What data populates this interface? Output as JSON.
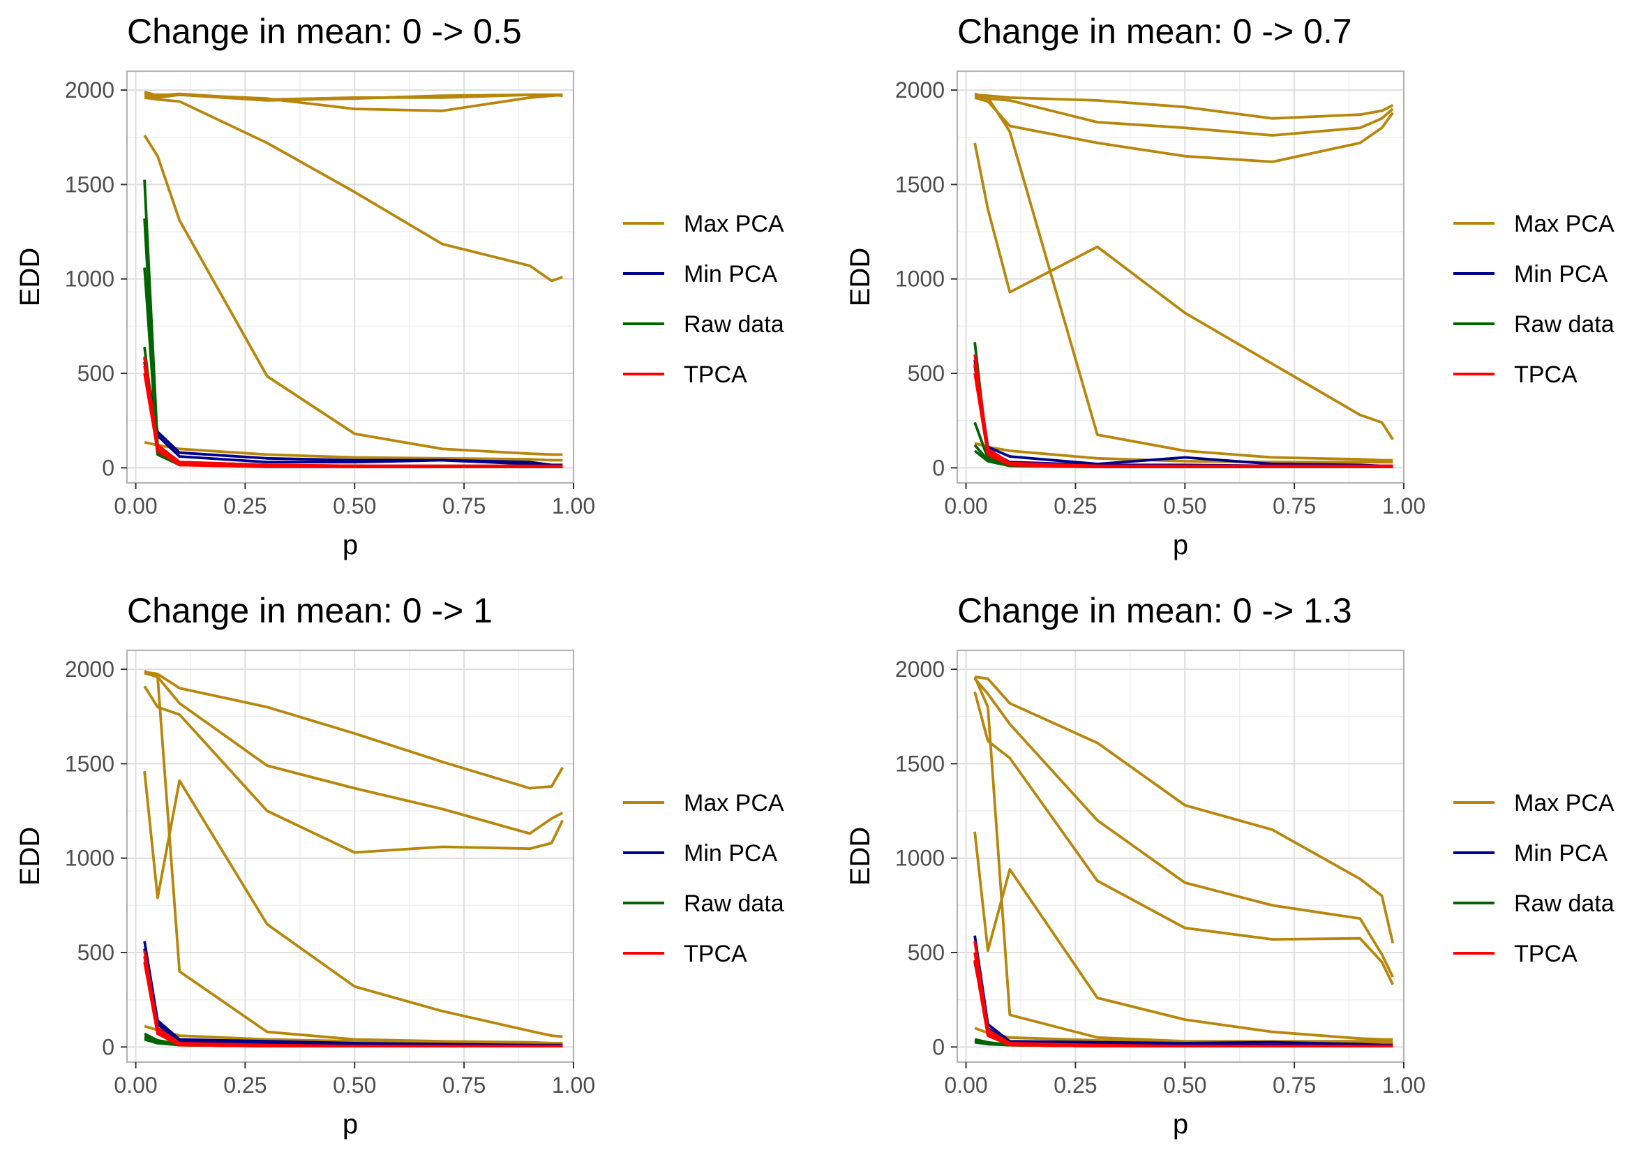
{
  "chart_data": [
    {
      "type": "line",
      "title": "Change in mean: 0 -> 0.5",
      "xlabel": "p",
      "ylabel": "EDD",
      "xlim": [
        -0.02,
        1.0
      ],
      "ylim": [
        -80,
        2100
      ],
      "xticks": [
        "0.00",
        "0.25",
        "0.50",
        "0.75",
        "1.00"
      ],
      "yticks": [
        "0",
        "500",
        "1000",
        "1500",
        "2000"
      ],
      "grid": true,
      "legend_position": "right",
      "legend": [
        "Max PCA",
        "Min PCA",
        "Raw data",
        "TPCA"
      ],
      "colors": {
        "Max PCA": "#B8860B",
        "Min PCA": "#00008B",
        "Raw data": "#006400",
        "TPCA": "#FF0000"
      },
      "x": [
        0.02,
        0.05,
        0.1,
        0.3,
        0.5,
        0.7,
        0.9,
        0.95,
        0.975
      ],
      "series": [
        {
          "group": "Max PCA",
          "values": [
            1990,
            1970,
            1980,
            1950,
            1960,
            1960,
            1975,
            1975,
            1975
          ]
        },
        {
          "group": "Max PCA",
          "values": [
            1970,
            1960,
            1975,
            1955,
            1900,
            1890,
            1960,
            1970,
            1975
          ]
        },
        {
          "group": "Max PCA",
          "values": [
            1975,
            1975,
            1975,
            1945,
            1955,
            1970,
            1975,
            1975,
            1970
          ]
        },
        {
          "group": "Max PCA",
          "values": [
            1960,
            1950,
            1940,
            1720,
            1460,
            1185,
            1070,
            990,
            1010
          ]
        },
        {
          "group": "Max PCA",
          "values": [
            1760,
            1650,
            1310,
            485,
            180,
            100,
            75,
            70,
            70
          ]
        },
        {
          "group": "Max PCA",
          "values": [
            135,
            120,
            100,
            70,
            55,
            50,
            45,
            40,
            40
          ]
        },
        {
          "group": "Min PCA",
          "values": [
            580,
            190,
            80,
            50,
            40,
            40,
            30,
            15,
            15
          ]
        },
        {
          "group": "Min PCA",
          "values": [
            560,
            170,
            60,
            30,
            30,
            40,
            20,
            10,
            10
          ]
        },
        {
          "group": "Raw data",
          "values": [
            1525,
            120,
            30,
            15,
            10,
            10,
            10,
            5,
            5
          ]
        },
        {
          "group": "Raw data",
          "values": [
            1320,
            90,
            25,
            10,
            10,
            5,
            5,
            5,
            5
          ]
        },
        {
          "group": "Raw data",
          "values": [
            1060,
            80,
            20,
            10,
            10,
            5,
            5,
            5,
            5
          ]
        },
        {
          "group": "Raw data",
          "values": [
            640,
            70,
            15,
            10,
            5,
            5,
            5,
            5,
            5
          ]
        },
        {
          "group": "TPCA",
          "values": [
            590,
            120,
            30,
            15,
            10,
            10,
            10,
            10,
            10
          ]
        },
        {
          "group": "TPCA",
          "values": [
            540,
            100,
            20,
            10,
            10,
            5,
            5,
            5,
            5
          ]
        },
        {
          "group": "TPCA",
          "values": [
            500,
            90,
            15,
            5,
            5,
            5,
            5,
            5,
            5
          ]
        }
      ]
    },
    {
      "type": "line",
      "title": "Change in mean: 0 -> 0.7",
      "xlabel": "p",
      "ylabel": "EDD",
      "xlim": [
        -0.02,
        1.0
      ],
      "ylim": [
        -80,
        2100
      ],
      "xticks": [
        "0.00",
        "0.25",
        "0.50",
        "0.75",
        "1.00"
      ],
      "yticks": [
        "0",
        "500",
        "1000",
        "1500",
        "2000"
      ],
      "grid": true,
      "legend_position": "right",
      "legend": [
        "Max PCA",
        "Min PCA",
        "Raw data",
        "TPCA"
      ],
      "colors": {
        "Max PCA": "#B8860B",
        "Min PCA": "#00008B",
        "Raw data": "#006400",
        "TPCA": "#FF0000"
      },
      "x": [
        0.02,
        0.05,
        0.1,
        0.3,
        0.5,
        0.7,
        0.9,
        0.95,
        0.975
      ],
      "series": [
        {
          "group": "Max PCA",
          "values": [
            1975,
            1970,
            1960,
            1945,
            1910,
            1850,
            1870,
            1890,
            1920
          ]
        },
        {
          "group": "Max PCA",
          "values": [
            1970,
            1955,
            1945,
            1830,
            1800,
            1760,
            1800,
            1850,
            1900
          ]
        },
        {
          "group": "Max PCA",
          "values": [
            1960,
            1940,
            1810,
            1720,
            1650,
            1620,
            1720,
            1800,
            1880
          ]
        },
        {
          "group": "Max PCA",
          "values": [
            1720,
            1370,
            930,
            1170,
            820,
            550,
            280,
            240,
            150
          ]
        },
        {
          "group": "Max PCA",
          "values": [
            1980,
            1960,
            1780,
            175,
            90,
            55,
            45,
            40,
            40
          ]
        },
        {
          "group": "Max PCA",
          "values": [
            130,
            110,
            90,
            50,
            35,
            30,
            30,
            30,
            30
          ]
        },
        {
          "group": "Min PCA",
          "values": [
            570,
            110,
            60,
            20,
            55,
            20,
            15,
            10,
            10
          ]
        },
        {
          "group": "Min PCA",
          "values": [
            540,
            90,
            30,
            15,
            15,
            10,
            10,
            5,
            5
          ]
        },
        {
          "group": "Raw data",
          "values": [
            665,
            60,
            20,
            10,
            5,
            5,
            5,
            5,
            5
          ]
        },
        {
          "group": "Raw data",
          "values": [
            240,
            50,
            15,
            10,
            5,
            5,
            5,
            5,
            5
          ]
        },
        {
          "group": "Raw data",
          "values": [
            120,
            40,
            10,
            5,
            5,
            5,
            5,
            5,
            5
          ]
        },
        {
          "group": "Raw data",
          "values": [
            90,
            35,
            10,
            5,
            5,
            5,
            5,
            5,
            5
          ]
        },
        {
          "group": "TPCA",
          "values": [
            600,
            100,
            25,
            10,
            10,
            10,
            10,
            10,
            10
          ]
        },
        {
          "group": "TPCA",
          "values": [
            550,
            80,
            20,
            10,
            5,
            5,
            5,
            5,
            5
          ]
        },
        {
          "group": "TPCA",
          "values": [
            500,
            70,
            15,
            5,
            5,
            5,
            5,
            5,
            5
          ]
        }
      ]
    },
    {
      "type": "line",
      "title": "Change in mean: 0 -> 1",
      "xlabel": "p",
      "ylabel": "EDD",
      "xlim": [
        -0.02,
        1.0
      ],
      "ylim": [
        -80,
        2100
      ],
      "xticks": [
        "0.00",
        "0.25",
        "0.50",
        "0.75",
        "1.00"
      ],
      "yticks": [
        "0",
        "500",
        "1000",
        "1500",
        "2000"
      ],
      "grid": true,
      "legend_position": "right",
      "legend": [
        "Max PCA",
        "Min PCA",
        "Raw data",
        "TPCA"
      ],
      "colors": {
        "Max PCA": "#B8860B",
        "Min PCA": "#00008B",
        "Raw data": "#006400",
        "TPCA": "#FF0000"
      },
      "x": [
        0.02,
        0.05,
        0.1,
        0.3,
        0.5,
        0.7,
        0.9,
        0.95,
        0.975
      ],
      "series": [
        {
          "group": "Max PCA",
          "values": [
            1985,
            1975,
            1900,
            1800,
            1660,
            1510,
            1370,
            1380,
            1480
          ]
        },
        {
          "group": "Max PCA",
          "values": [
            1980,
            1960,
            1820,
            1490,
            1370,
            1260,
            1130,
            1210,
            1240
          ]
        },
        {
          "group": "Max PCA",
          "values": [
            1910,
            1800,
            1760,
            1250,
            1030,
            1060,
            1050,
            1080,
            1200
          ]
        },
        {
          "group": "Max PCA",
          "values": [
            1460,
            790,
            1410,
            650,
            320,
            190,
            85,
            60,
            55
          ]
        },
        {
          "group": "Max PCA",
          "values": [
            1990,
            1960,
            400,
            80,
            40,
            30,
            25,
            20,
            20
          ]
        },
        {
          "group": "Max PCA",
          "values": [
            110,
            90,
            60,
            40,
            30,
            25,
            20,
            20,
            20
          ]
        },
        {
          "group": "Min PCA",
          "values": [
            560,
            140,
            40,
            30,
            20,
            15,
            10,
            10,
            10
          ]
        },
        {
          "group": "Min PCA",
          "values": [
            520,
            120,
            30,
            20,
            15,
            10,
            10,
            5,
            5
          ]
        },
        {
          "group": "Raw data",
          "values": [
            70,
            35,
            15,
            10,
            5,
            5,
            5,
            5,
            5
          ]
        },
        {
          "group": "Raw data",
          "values": [
            55,
            30,
            10,
            5,
            5,
            5,
            5,
            5,
            5
          ]
        },
        {
          "group": "Raw data",
          "values": [
            45,
            25,
            10,
            5,
            5,
            5,
            5,
            5,
            5
          ]
        },
        {
          "group": "Raw data",
          "values": [
            40,
            20,
            10,
            5,
            5,
            5,
            5,
            5,
            5
          ]
        },
        {
          "group": "TPCA",
          "values": [
            510,
            100,
            20,
            10,
            5,
            5,
            5,
            5,
            5
          ]
        },
        {
          "group": "TPCA",
          "values": [
            480,
            80,
            15,
            5,
            5,
            5,
            5,
            5,
            5
          ]
        },
        {
          "group": "TPCA",
          "values": [
            450,
            70,
            10,
            5,
            5,
            5,
            5,
            5,
            5
          ]
        }
      ]
    },
    {
      "type": "line",
      "title": "Change in mean: 0 -> 1.3",
      "xlabel": "p",
      "ylabel": "EDD",
      "xlim": [
        -0.02,
        1.0
      ],
      "ylim": [
        -80,
        2100
      ],
      "xticks": [
        "0.00",
        "0.25",
        "0.50",
        "0.75",
        "1.00"
      ],
      "yticks": [
        "0",
        "500",
        "1000",
        "1500",
        "2000"
      ],
      "grid": true,
      "legend_position": "right",
      "legend": [
        "Max PCA",
        "Min PCA",
        "Raw data",
        "TPCA"
      ],
      "colors": {
        "Max PCA": "#B8860B",
        "Min PCA": "#00008B",
        "Raw data": "#006400",
        "TPCA": "#FF0000"
      },
      "x": [
        0.02,
        0.05,
        0.1,
        0.3,
        0.5,
        0.7,
        0.9,
        0.95,
        0.975
      ],
      "series": [
        {
          "group": "Max PCA",
          "values": [
            1960,
            1950,
            1820,
            1610,
            1280,
            1150,
            890,
            800,
            550
          ]
        },
        {
          "group": "Max PCA",
          "values": [
            1950,
            1870,
            1710,
            1200,
            870,
            750,
            680,
            490,
            370
          ]
        },
        {
          "group": "Max PCA",
          "values": [
            1880,
            1620,
            1530,
            880,
            630,
            570,
            575,
            450,
            330
          ]
        },
        {
          "group": "Max PCA",
          "values": [
            1140,
            510,
            940,
            260,
            145,
            80,
            45,
            40,
            40
          ]
        },
        {
          "group": "Max PCA",
          "values": [
            1960,
            1800,
            170,
            50,
            30,
            30,
            30,
            30,
            30
          ]
        },
        {
          "group": "Max PCA",
          "values": [
            100,
            75,
            50,
            35,
            25,
            20,
            20,
            20,
            20
          ]
        },
        {
          "group": "Min PCA",
          "values": [
            590,
            120,
            30,
            25,
            20,
            25,
            15,
            10,
            10
          ]
        },
        {
          "group": "Min PCA",
          "values": [
            450,
            100,
            20,
            15,
            10,
            10,
            10,
            5,
            5
          ]
        },
        {
          "group": "Raw data",
          "values": [
            40,
            25,
            10,
            5,
            5,
            5,
            5,
            5,
            5
          ]
        },
        {
          "group": "Raw data",
          "values": [
            35,
            20,
            10,
            5,
            5,
            5,
            5,
            5,
            5
          ]
        },
        {
          "group": "Raw data",
          "values": [
            30,
            20,
            10,
            5,
            5,
            5,
            5,
            5,
            5
          ]
        },
        {
          "group": "Raw data",
          "values": [
            25,
            15,
            10,
            5,
            5,
            5,
            5,
            5,
            5
          ]
        },
        {
          "group": "TPCA",
          "values": [
            560,
            90,
            20,
            10,
            5,
            5,
            5,
            5,
            5
          ]
        },
        {
          "group": "TPCA",
          "values": [
            500,
            70,
            15,
            5,
            5,
            5,
            5,
            5,
            5
          ]
        },
        {
          "group": "TPCA",
          "values": [
            460,
            60,
            10,
            5,
            5,
            5,
            5,
            5,
            5
          ]
        }
      ]
    }
  ]
}
